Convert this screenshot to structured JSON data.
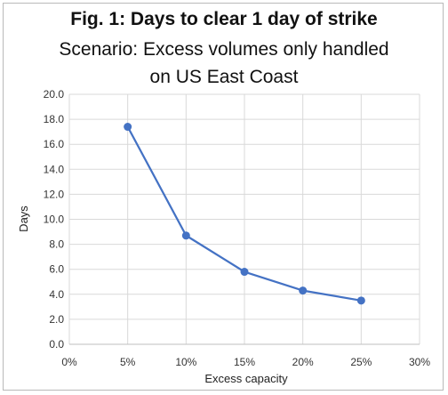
{
  "chart_data": {
    "type": "line",
    "title": "Fig. 1: Days to clear 1 day of strike",
    "subtitle_lines": [
      "Scenario: Excess volumes only handled",
      "on US East Coast"
    ],
    "xlabel": "Excess capacity",
    "ylabel": "Days",
    "x_ticks": [
      "0%",
      "5%",
      "10%",
      "15%",
      "20%",
      "25%",
      "30%"
    ],
    "y_ticks": [
      "0.0",
      "2.0",
      "4.0",
      "6.0",
      "8.0",
      "10.0",
      "12.0",
      "14.0",
      "16.0",
      "18.0",
      "20.0"
    ],
    "xlim": [
      0,
      30
    ],
    "ylim": [
      0,
      20
    ],
    "grid": true,
    "series": [
      {
        "x": [
          5,
          10,
          15,
          20,
          25
        ],
        "values": [
          17.4,
          8.7,
          5.8,
          4.3,
          3.5
        ],
        "color": "#4472c4"
      }
    ]
  }
}
